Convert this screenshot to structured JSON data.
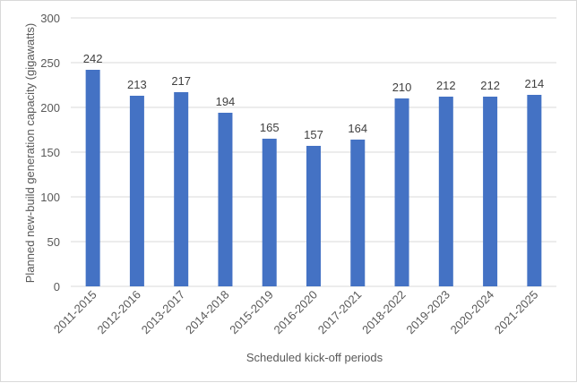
{
  "chart_data": {
    "type": "bar",
    "title": "",
    "xlabel": "Scheduled kick-off periods",
    "ylabel": "Planned new-build generation capacity (gigawatts)",
    "categories": [
      "2011-2015",
      "2012-2016",
      "2013-2017",
      "2014-2018",
      "2015-2019",
      "2016-2020",
      "2017-2021",
      "2018-2022",
      "2019-2023",
      "2020-2024",
      "2021-2025"
    ],
    "values": [
      242,
      213,
      217,
      194,
      165,
      157,
      164,
      210,
      212,
      212,
      214
    ],
    "ylim": [
      0,
      300
    ],
    "yticks": [
      0,
      50,
      100,
      150,
      200,
      250,
      300
    ],
    "grid": true,
    "legend": "none",
    "bar_color": "#4472C4",
    "grid_color": "#d9d9d9"
  }
}
